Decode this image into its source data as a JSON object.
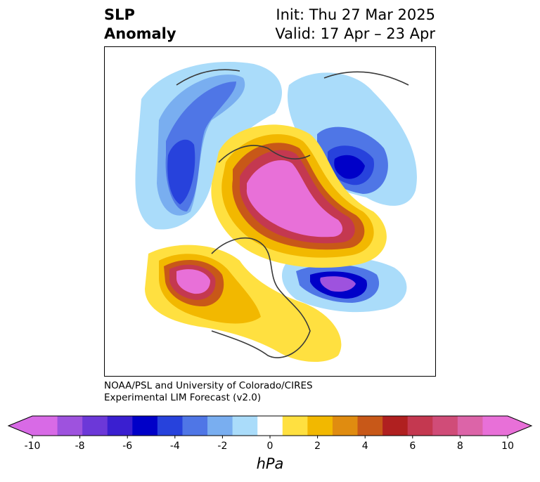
{
  "title": {
    "left_line1": "SLP",
    "left_line2": "Anomaly",
    "right_line1": "Init: Thu 27 Mar 2025",
    "right_line2": "Valid: 17 Apr – 23 Apr"
  },
  "credit": {
    "line1": "NOAA/PSL and University of Colorado/CIRES",
    "line2": "Experimental LIM Forecast (v2.0)"
  },
  "colorbar": {
    "unit": "hPa",
    "colors": [
      "#d86ae6",
      "#9e52de",
      "#6c38d8",
      "#3a1fd0",
      "#0000c8",
      "#2742dc",
      "#4f76e6",
      "#79aef0",
      "#aadcfa",
      "#ffffff",
      "#ffe040",
      "#f2b800",
      "#e08c10",
      "#c85818",
      "#b02020",
      "#c43850",
      "#d04c78",
      "#dc64a8",
      "#e870d8"
    ],
    "extend_low": "#d86ae6",
    "extend_high": "#e870d8",
    "ticks": [
      "-10",
      "-8",
      "-6",
      "-4",
      "-2",
      "0",
      "2",
      "4",
      "6",
      "8",
      "10"
    ]
  }
}
